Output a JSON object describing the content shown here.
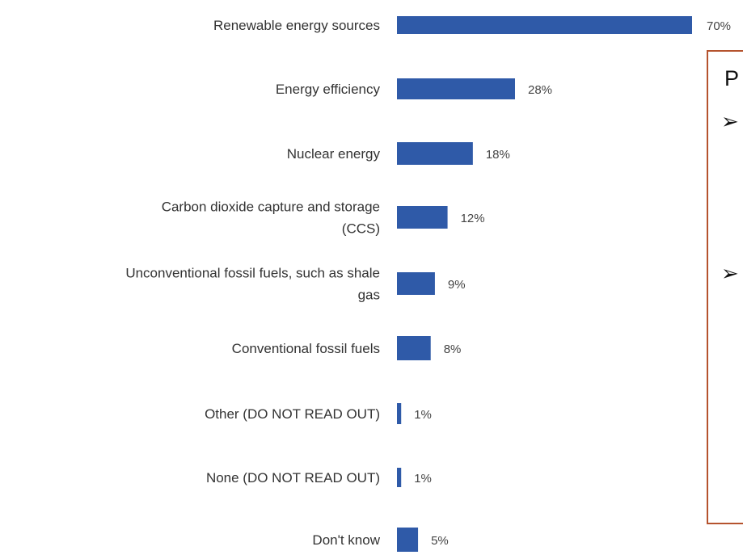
{
  "chart_data": {
    "type": "bar",
    "orientation": "horizontal",
    "categories": [
      [
        "Renewable energy sources"
      ],
      [
        "Energy efficiency"
      ],
      [
        "Nuclear energy"
      ],
      [
        "Carbon dioxide capture and storage",
        "(CCS)"
      ],
      [
        "Unconventional fossil fuels, such as shale",
        "gas"
      ],
      [
        "Conventional fossil fuels"
      ],
      [
        "Other (DO NOT READ OUT)"
      ],
      [
        "None (DO NOT READ OUT)"
      ],
      [
        "Don't know"
      ]
    ],
    "values": [
      70,
      28,
      18,
      12,
      9,
      8,
      1,
      1,
      5
    ],
    "value_labels": [
      "70%",
      "28%",
      "18%",
      "12%",
      "9%",
      "8%",
      "1%",
      "1%",
      "5%"
    ],
    "unit": "%",
    "xlim": [
      0,
      70
    ],
    "grid": false,
    "colors": {
      "bar": "#2f5aa8"
    }
  },
  "side_box": {
    "letter": "P",
    "bullets": [
      "➢",
      "➢"
    ],
    "border_color": "#b5532e"
  }
}
